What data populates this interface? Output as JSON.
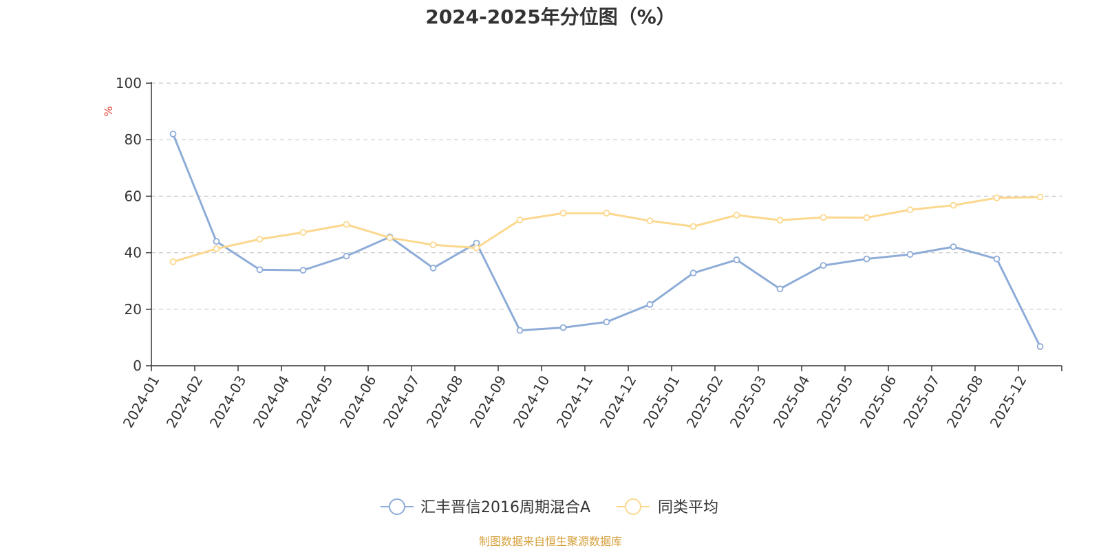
{
  "chart_data": {
    "type": "line",
    "title": "2024-2025年分位图（%）",
    "ylabel": "%",
    "ylim": [
      0,
      100
    ],
    "yticks": [
      0,
      20,
      40,
      60,
      80,
      100
    ],
    "grid": true,
    "legend_position": "bottom",
    "categories": [
      "2024-01",
      "2024-02",
      "2024-03",
      "2024-04",
      "2024-05",
      "2024-06",
      "2024-07",
      "2024-08",
      "2024-09",
      "2024-10",
      "2024-11",
      "2024-12",
      "2025-01",
      "2025-02",
      "2025-03",
      "2025-04",
      "2025-05",
      "2025-06",
      "2025-07",
      "2025-08",
      "2025-12"
    ],
    "series": [
      {
        "name": "汇丰晋信2016周期混合A",
        "color": "#8eacd8",
        "values": [
          82,
          44,
          34,
          33.8,
          38.8,
          45.6,
          34.6,
          43.4,
          12.5,
          13.5,
          15.5,
          21.7,
          32.8,
          37.5,
          27.2,
          35.5,
          37.8,
          39.4,
          42.1,
          37.8,
          6.8
        ]
      },
      {
        "name": "同类平均",
        "color": "#fbd88e",
        "values": [
          36.8,
          41.4,
          44.8,
          47.2,
          50,
          45.3,
          42.8,
          41.7,
          51.6,
          54,
          54,
          51.3,
          49.3,
          53.3,
          51.5,
          52.5,
          52.4,
          55.2,
          56.8,
          59.4,
          59.7
        ]
      }
    ]
  },
  "source_text": "制图数据来自恒生聚源数据库",
  "colors": {
    "ylabel": "#e8463a",
    "source": "#d4a03b",
    "axis": "#333333",
    "grid": "#c8c8c8"
  }
}
